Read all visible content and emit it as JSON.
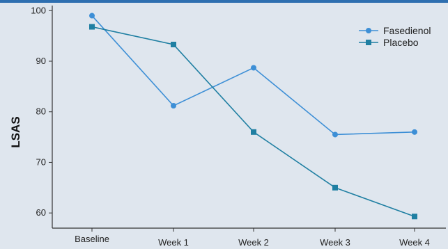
{
  "chart_data": {
    "type": "line",
    "title": "",
    "xlabel": "",
    "ylabel": "LSAS",
    "categories": [
      "Baseline",
      "Week 1",
      "Week 2",
      "Week 3",
      "Week 4"
    ],
    "series": [
      {
        "name": "Fasedienol",
        "values": [
          99,
          81.2,
          88.7,
          75.5,
          76
        ],
        "color": "#3d8fd6",
        "marker": "circle"
      },
      {
        "name": "Placebo",
        "values": [
          96.8,
          93.3,
          76,
          65,
          59.3
        ],
        "color": "#1f7fa2",
        "marker": "square"
      }
    ],
    "yticks": [
      60,
      70,
      80,
      90,
      100
    ],
    "ylim": [
      57,
      101
    ],
    "grid": false,
    "legend_position": "top-right"
  }
}
